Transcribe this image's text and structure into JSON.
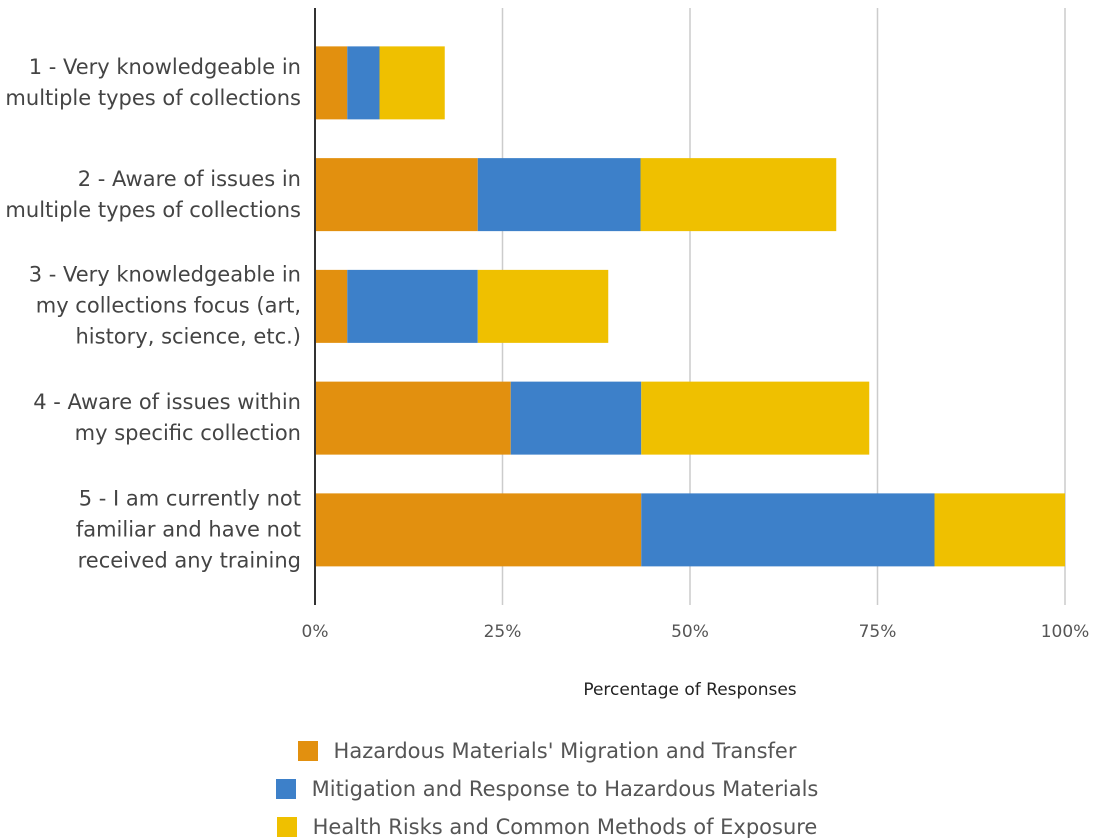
{
  "chart_data": {
    "type": "stacked_bar_horizontal",
    "categories": [
      "1 - Very knowledgeable in multiple types of collections",
      "2 - Aware of issues in multiple types of collections",
      "3 - Very knowledgeable in my collections focus (art, history, science, etc.)",
      "4 - Aware of issues within my specific collection",
      "5 - I am currently not familiar and have not received any training"
    ],
    "series": [
      {
        "name": "Hazardous Materials' Migration and Transfer",
        "color": "#e2900f",
        "values": [
          4.3,
          21.7,
          4.3,
          26.1,
          43.5
        ]
      },
      {
        "name": "Mitigation and Response to Hazardous Materials",
        "color": "#3d80c9",
        "values": [
          4.3,
          21.7,
          17.4,
          17.4,
          39.1
        ]
      },
      {
        "name": "Health Risks and Common Methods of Exposure",
        "color": "#efc000",
        "values": [
          8.7,
          26.1,
          17.4,
          30.4,
          17.4
        ]
      }
    ],
    "x_label": "Percentage of Responses",
    "xlim": [
      0,
      100
    ],
    "xticks": [
      {
        "value": 0,
        "label": "0%"
      },
      {
        "value": 25,
        "label": "25%"
      },
      {
        "value": 50,
        "label": "50%"
      },
      {
        "value": 75,
        "label": "75%"
      },
      {
        "value": 100,
        "label": "100%"
      }
    ],
    "grid": true,
    "legend": "bottom"
  }
}
